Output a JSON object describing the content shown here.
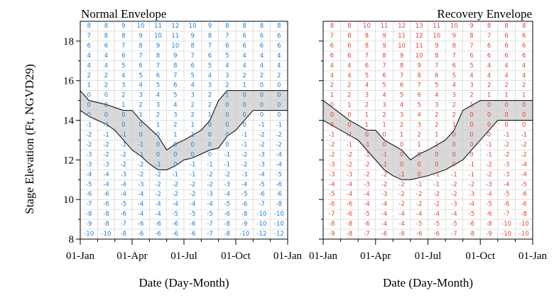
{
  "chart_data": {
    "type": "heatmap",
    "ylabel": "Stage Elevation (Ft, NGVD29)",
    "ylim": [
      8,
      19
    ],
    "yticks": [
      8,
      10,
      12,
      14,
      16,
      18
    ],
    "xlim_months": [
      0,
      12
    ],
    "xticks": [
      "01-Jan",
      "01-Apr",
      "01-Jul",
      "01-Oct",
      "01-Jan"
    ],
    "xlabel": "Date (Day-Month)",
    "stage_rows": [
      18.75,
      18.25,
      17.75,
      17.25,
      16.75,
      16.25,
      15.75,
      15.25,
      14.75,
      14.25,
      13.75,
      13.25,
      12.75,
      12.25,
      11.75,
      11.25,
      10.75,
      10.25,
      9.75,
      9.25,
      8.75,
      8.25
    ],
    "grid": true,
    "panels": [
      {
        "title": "Normal Envelope",
        "text_color": "#1a7fd6",
        "values": [
          [
            8,
            8,
            9,
            10,
            11,
            12,
            10,
            9,
            8,
            8,
            8,
            8
          ],
          [
            7,
            8,
            8,
            9,
            10,
            11,
            9,
            8,
            7,
            6,
            6,
            6
          ],
          [
            6,
            6,
            7,
            8,
            9,
            10,
            8,
            7,
            6,
            6,
            6,
            6
          ],
          [
            4,
            4,
            6,
            7,
            8,
            9,
            7,
            6,
            5,
            4,
            4,
            4
          ],
          [
            4,
            4,
            5,
            6,
            7,
            8,
            6,
            5,
            4,
            4,
            4,
            4
          ],
          [
            2,
            2,
            4,
            5,
            6,
            7,
            5,
            4,
            3,
            2,
            2,
            2
          ],
          [
            1,
            2,
            3,
            4,
            5,
            6,
            4,
            3,
            2,
            1,
            0,
            0
          ],
          [
            0,
            0,
            2,
            3,
            4,
            5,
            3,
            2,
            1,
            0,
            0,
            0
          ],
          [
            0,
            0,
            1,
            2,
            3,
            4,
            2,
            2,
            0,
            0,
            0,
            0
          ],
          [
            0,
            0,
            0,
            1,
            2,
            3,
            2,
            1,
            0,
            0,
            0,
            0
          ],
          [
            -1,
            -1,
            0,
            0,
            1,
            2,
            1,
            0,
            0,
            0,
            -1,
            -1
          ],
          [
            -2,
            -1,
            -1,
            0,
            0,
            1,
            1,
            0,
            0,
            -1,
            -2,
            -2
          ],
          [
            -2,
            -2,
            -1,
            -1,
            0,
            0,
            0,
            0,
            0,
            -1,
            -2,
            -2
          ],
          [
            -3,
            -2,
            -2,
            -1,
            0,
            0,
            0,
            0,
            -1,
            -2,
            -3,
            -4
          ],
          [
            -3,
            -3,
            -2,
            -2,
            -1,
            0,
            -1,
            -1,
            -1,
            -2,
            -3,
            -4
          ],
          [
            -4,
            -4,
            -3,
            -2,
            -2,
            -1,
            -1,
            -2,
            -2,
            -3,
            -4,
            -5
          ],
          [
            -5,
            -4,
            -4,
            -3,
            -2,
            -2,
            -2,
            -2,
            -3,
            -4,
            -5,
            -6
          ],
          [
            -6,
            -6,
            -4,
            -4,
            -2,
            -2,
            -2,
            -3,
            -4,
            -5,
            -6,
            -6
          ],
          [
            -7,
            -6,
            -5,
            -4,
            -4,
            -4,
            -4,
            -4,
            -5,
            -6,
            -7,
            -8
          ],
          [
            -8,
            -8,
            -6,
            -4,
            -4,
            -5,
            -5,
            -5,
            -6,
            -8,
            -10,
            -10
          ],
          [
            -9,
            -8,
            -7,
            -6,
            -6,
            -6,
            -6,
            -7,
            -8,
            -9,
            -10,
            -10
          ],
          [
            -10,
            -10,
            -8,
            -6,
            -6,
            -6,
            -6,
            -7,
            -8,
            -10,
            -12,
            -12
          ]
        ],
        "envelope_upper": [
          [
            0,
            15.5
          ],
          [
            0.5,
            15.0
          ],
          [
            1.5,
            14.8
          ],
          [
            2.5,
            14.5
          ],
          [
            3.0,
            14.5
          ],
          [
            3.5,
            14.0
          ],
          [
            4.5,
            13.2
          ],
          [
            5.0,
            12.5
          ],
          [
            5.5,
            12.8
          ],
          [
            6.0,
            13.0
          ],
          [
            7.0,
            13.5
          ],
          [
            7.5,
            14.0
          ],
          [
            8.0,
            15.0
          ],
          [
            8.5,
            15.5
          ],
          [
            12,
            15.5
          ]
        ],
        "envelope_lower": [
          [
            0,
            14.5
          ],
          [
            0.5,
            14.2
          ],
          [
            1.5,
            13.8
          ],
          [
            2.0,
            13.5
          ],
          [
            3.0,
            12.5
          ],
          [
            3.5,
            12.2
          ],
          [
            4.0,
            11.8
          ],
          [
            4.5,
            11.5
          ],
          [
            5.0,
            11.5
          ],
          [
            5.5,
            11.7
          ],
          [
            6.0,
            12.0
          ],
          [
            6.5,
            12.1
          ],
          [
            7.0,
            12.3
          ],
          [
            7.5,
            12.5
          ],
          [
            8.0,
            12.6
          ],
          [
            8.5,
            13.2
          ],
          [
            9.0,
            13.5
          ],
          [
            10.0,
            14.5
          ],
          [
            12,
            14.5
          ]
        ]
      },
      {
        "title": "Recovery Envelope",
        "text_color": "#e0443e",
        "values": [
          [
            8,
            8,
            10,
            11,
            12,
            13,
            11,
            10,
            9,
            8,
            8,
            8
          ],
          [
            7,
            8,
            8,
            9,
            11,
            12,
            10,
            9,
            8,
            7,
            6,
            6
          ],
          [
            6,
            6,
            8,
            9,
            10,
            11,
            9,
            8,
            7,
            6,
            6,
            6
          ],
          [
            6,
            6,
            7,
            8,
            9,
            10,
            8,
            7,
            6,
            6,
            6,
            6
          ],
          [
            4,
            4,
            6,
            7,
            8,
            9,
            7,
            6,
            5,
            4,
            4,
            4
          ],
          [
            4,
            4,
            5,
            6,
            7,
            8,
            6,
            5,
            4,
            4,
            4,
            4
          ],
          [
            2,
            2,
            4,
            5,
            6,
            7,
            5,
            4,
            3,
            2,
            2,
            2
          ],
          [
            1,
            2,
            3,
            4,
            5,
            6,
            4,
            3,
            2,
            1,
            1,
            1
          ],
          [
            0,
            1,
            2,
            3,
            4,
            5,
            3,
            2,
            1,
            0,
            0,
            0
          ],
          [
            0,
            0,
            1,
            2,
            3,
            4,
            2,
            2,
            0,
            0,
            0,
            0
          ],
          [
            0,
            0,
            1,
            1,
            2,
            3,
            2,
            1,
            0,
            0,
            0,
            0
          ],
          [
            -1,
            -1,
            0,
            0,
            1,
            2,
            1,
            0,
            0,
            0,
            -1,
            -1
          ],
          [
            -2,
            -1,
            -1,
            0,
            0,
            1,
            1,
            0,
            0,
            -1,
            -2,
            -2
          ],
          [
            -2,
            -2,
            -1,
            -1,
            0,
            0,
            0,
            0,
            0,
            -1,
            -2,
            -2
          ],
          [
            -3,
            -2,
            -2,
            -1,
            0,
            0,
            0,
            0,
            -1,
            -2,
            -3,
            -4
          ],
          [
            -3,
            -3,
            -2,
            -2,
            -1,
            0,
            -1,
            -1,
            -1,
            -2,
            -3,
            -4
          ],
          [
            -4,
            -4,
            -3,
            -2,
            -2,
            -1,
            -1,
            -2,
            -2,
            -3,
            -4,
            -5
          ],
          [
            -5,
            -4,
            -4,
            -3,
            -2,
            -2,
            -2,
            -2,
            -3,
            -4,
            -5,
            -6
          ],
          [
            -6,
            -6,
            -4,
            -4,
            -2,
            -2,
            -2,
            -3,
            -4,
            -5,
            -6,
            -6
          ],
          [
            -7,
            -6,
            -5,
            -4,
            -4,
            -4,
            -4,
            -4,
            -5,
            -6,
            -7,
            -8
          ],
          [
            -8,
            -8,
            -6,
            -4,
            -4,
            -5,
            -5,
            -5,
            -6,
            -8,
            -10,
            -10
          ],
          [
            -9,
            -8,
            -7,
            -6,
            -6,
            -6,
            -6,
            -7,
            -8,
            -9,
            -10,
            -10
          ]
        ],
        "envelope_upper": [
          [
            0,
            15.0
          ],
          [
            1.5,
            14.0
          ],
          [
            2.5,
            13.5
          ],
          [
            3.0,
            13.5
          ],
          [
            3.5,
            13.0
          ],
          [
            4.5,
            12.5
          ],
          [
            5.0,
            12.0
          ],
          [
            5.5,
            12.3
          ],
          [
            6.0,
            12.5
          ],
          [
            7.0,
            13.0
          ],
          [
            7.5,
            13.5
          ],
          [
            8.0,
            14.5
          ],
          [
            9.0,
            15.0
          ],
          [
            12,
            15.0
          ]
        ],
        "envelope_lower": [
          [
            0,
            14.0
          ],
          [
            1.0,
            13.5
          ],
          [
            2.0,
            13.0
          ],
          [
            3.0,
            12.0
          ],
          [
            3.5,
            11.5
          ],
          [
            4.0,
            11.2
          ],
          [
            4.5,
            11.0
          ],
          [
            5.0,
            11.0
          ],
          [
            6.0,
            11.2
          ],
          [
            7.0,
            11.5
          ],
          [
            8.0,
            12.0
          ],
          [
            9.0,
            13.0
          ],
          [
            10.0,
            14.0
          ],
          [
            12,
            14.0
          ]
        ]
      }
    ]
  }
}
